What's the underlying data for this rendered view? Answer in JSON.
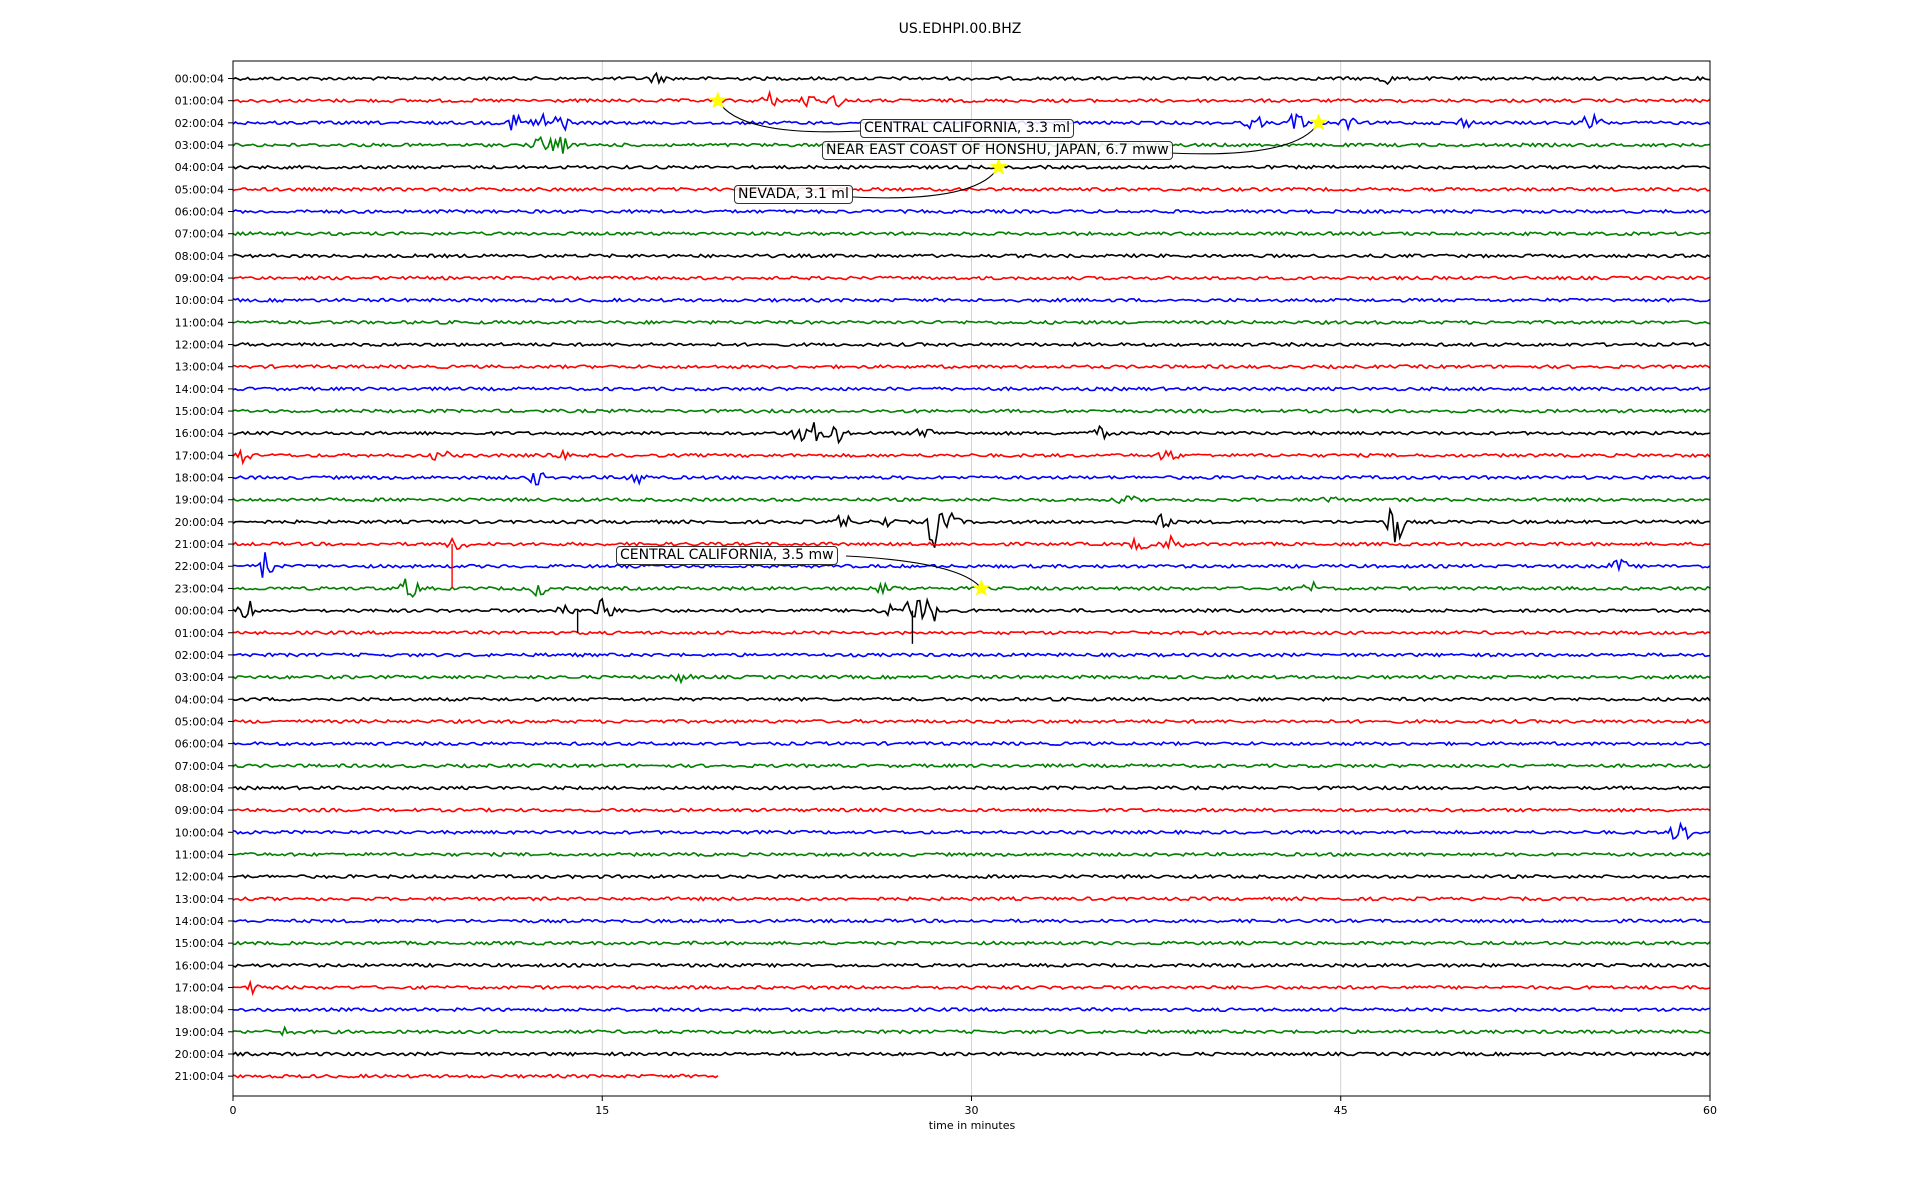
{
  "chart_data": {
    "type": "line",
    "title": "US.EDHPI.00.BHZ",
    "xlabel": "time in minutes",
    "ylabel": "",
    "xlim": [
      0,
      60
    ],
    "x_ticks": [
      "0",
      "15",
      "30",
      "45",
      "60"
    ],
    "grid": "vertical lines at 15, 30, 45",
    "row_labels": [
      "00:00:04",
      "01:00:04",
      "02:00:04",
      "03:00:04",
      "04:00:04",
      "05:00:04",
      "06:00:04",
      "07:00:04",
      "08:00:04",
      "09:00:04",
      "10:00:04",
      "11:00:04",
      "12:00:04",
      "13:00:04",
      "14:00:04",
      "15:00:04",
      "16:00:04",
      "17:00:04",
      "18:00:04",
      "19:00:04",
      "20:00:04",
      "21:00:04",
      "22:00:04",
      "23:00:04",
      "00:00:04",
      "01:00:04",
      "02:00:04",
      "03:00:04",
      "04:00:04",
      "05:00:04",
      "06:00:04",
      "07:00:04",
      "08:00:04",
      "09:00:04",
      "10:00:04",
      "11:00:04",
      "12:00:04",
      "13:00:04",
      "14:00:04",
      "15:00:04",
      "16:00:04",
      "17:00:04",
      "18:00:04",
      "19:00:04",
      "20:00:04",
      "21:00:04"
    ],
    "trace_colors": [
      "#000000",
      "#ff0000",
      "#0000ff",
      "#007f00"
    ],
    "last_row_end_minutes": 19.7,
    "bursts": [
      {
        "row": 0,
        "t": 17.2,
        "amp": 0.4
      },
      {
        "row": 0,
        "t": 46.8,
        "amp": 0.5
      },
      {
        "row": 1,
        "t": 21.8,
        "amp": 0.6
      },
      {
        "row": 1,
        "t": 23.3,
        "amp": 0.5
      },
      {
        "row": 1,
        "t": 24.5,
        "amp": 0.5
      },
      {
        "row": 2,
        "t": 11.5,
        "amp": 0.9
      },
      {
        "row": 2,
        "t": 12.5,
        "amp": 0.9
      },
      {
        "row": 2,
        "t": 13.3,
        "amp": 0.8
      },
      {
        "row": 2,
        "t": 41.5,
        "amp": 0.6
      },
      {
        "row": 2,
        "t": 43.2,
        "amp": 1.0
      },
      {
        "row": 2,
        "t": 45.3,
        "amp": 0.4
      },
      {
        "row": 2,
        "t": 50.0,
        "amp": 0.4
      },
      {
        "row": 2,
        "t": 55.2,
        "amp": 1.0
      },
      {
        "row": 3,
        "t": 12.5,
        "amp": 0.6
      },
      {
        "row": 3,
        "t": 13.2,
        "amp": 1.3
      },
      {
        "row": 16,
        "t": 23.0,
        "amp": 0.7
      },
      {
        "row": 16,
        "t": 23.8,
        "amp": 1.3
      },
      {
        "row": 16,
        "t": 24.6,
        "amp": 0.7
      },
      {
        "row": 16,
        "t": 28.1,
        "amp": 0.6
      },
      {
        "row": 16,
        "t": 35.2,
        "amp": 0.5
      },
      {
        "row": 17,
        "t": 0.4,
        "amp": 0.6
      },
      {
        "row": 17,
        "t": 8.4,
        "amp": 0.5
      },
      {
        "row": 17,
        "t": 13.2,
        "amp": 0.4
      },
      {
        "row": 17,
        "t": 38.0,
        "amp": 0.6
      },
      {
        "row": 18,
        "t": 12.3,
        "amp": 0.6
      },
      {
        "row": 18,
        "t": 16.4,
        "amp": 0.7
      },
      {
        "row": 19,
        "t": 36.3,
        "amp": 0.4
      },
      {
        "row": 19,
        "t": 44.5,
        "amp": 0.3
      },
      {
        "row": 20,
        "t": 24.8,
        "amp": 0.7
      },
      {
        "row": 20,
        "t": 26.5,
        "amp": 0.5
      },
      {
        "row": 20,
        "t": 28.5,
        "amp": 2.2
      },
      {
        "row": 20,
        "t": 29.2,
        "amp": 0.6
      },
      {
        "row": 20,
        "t": 37.8,
        "amp": 0.6
      },
      {
        "row": 20,
        "t": 47.2,
        "amp": 2.0
      },
      {
        "row": 21,
        "t": 9.1,
        "amp": 0.6
      },
      {
        "row": 21,
        "t": 36.8,
        "amp": 0.6
      },
      {
        "row": 21,
        "t": 38.2,
        "amp": 0.8
      },
      {
        "row": 22,
        "t": 1.3,
        "amp": 1.2
      },
      {
        "row": 22,
        "t": 56.3,
        "amp": 0.6
      },
      {
        "row": 23,
        "t": 7.2,
        "amp": 1.1
      },
      {
        "row": 23,
        "t": 12.4,
        "amp": 0.6
      },
      {
        "row": 23,
        "t": 26.5,
        "amp": 0.5
      },
      {
        "row": 23,
        "t": 43.8,
        "amp": 0.5
      },
      {
        "row": 24,
        "t": 0.6,
        "amp": 0.9
      },
      {
        "row": 24,
        "t": 13.5,
        "amp": 0.6
      },
      {
        "row": 24,
        "t": 15.1,
        "amp": 1.2
      },
      {
        "row": 24,
        "t": 26.5,
        "amp": 0.8
      },
      {
        "row": 24,
        "t": 27.6,
        "amp": 1.8
      },
      {
        "row": 24,
        "t": 28.3,
        "amp": 1.4
      },
      {
        "row": 27,
        "t": 18.2,
        "amp": 0.4
      },
      {
        "row": 34,
        "t": 58.8,
        "amp": 1.2
      },
      {
        "row": 41,
        "t": 0.8,
        "amp": 0.4
      },
      {
        "row": 43,
        "t": 2.1,
        "amp": 0.3
      }
    ],
    "spikes": [
      {
        "row": 21,
        "t": 8.9,
        "len": 2.0,
        "dir": 1
      },
      {
        "row": 24,
        "t": 14.0,
        "len": 1.0,
        "dir": 1
      },
      {
        "row": 24,
        "t": 27.6,
        "len": 1.5,
        "dir": 1
      }
    ],
    "events": [
      {
        "label": "CENTRAL CALIFORNIA, 3.3 ml",
        "row": 1,
        "t": 19.7
      },
      {
        "label": "NEAR EAST COAST OF HONSHU, JAPAN, 6.7 mww",
        "row": 2,
        "t": 44.1
      },
      {
        "label": "NEVADA, 3.1 ml",
        "row": 4,
        "t": 31.1
      },
      {
        "label": "CENTRAL CALIFORNIA, 3.5 mw",
        "row": 23,
        "t": 30.4
      }
    ]
  }
}
